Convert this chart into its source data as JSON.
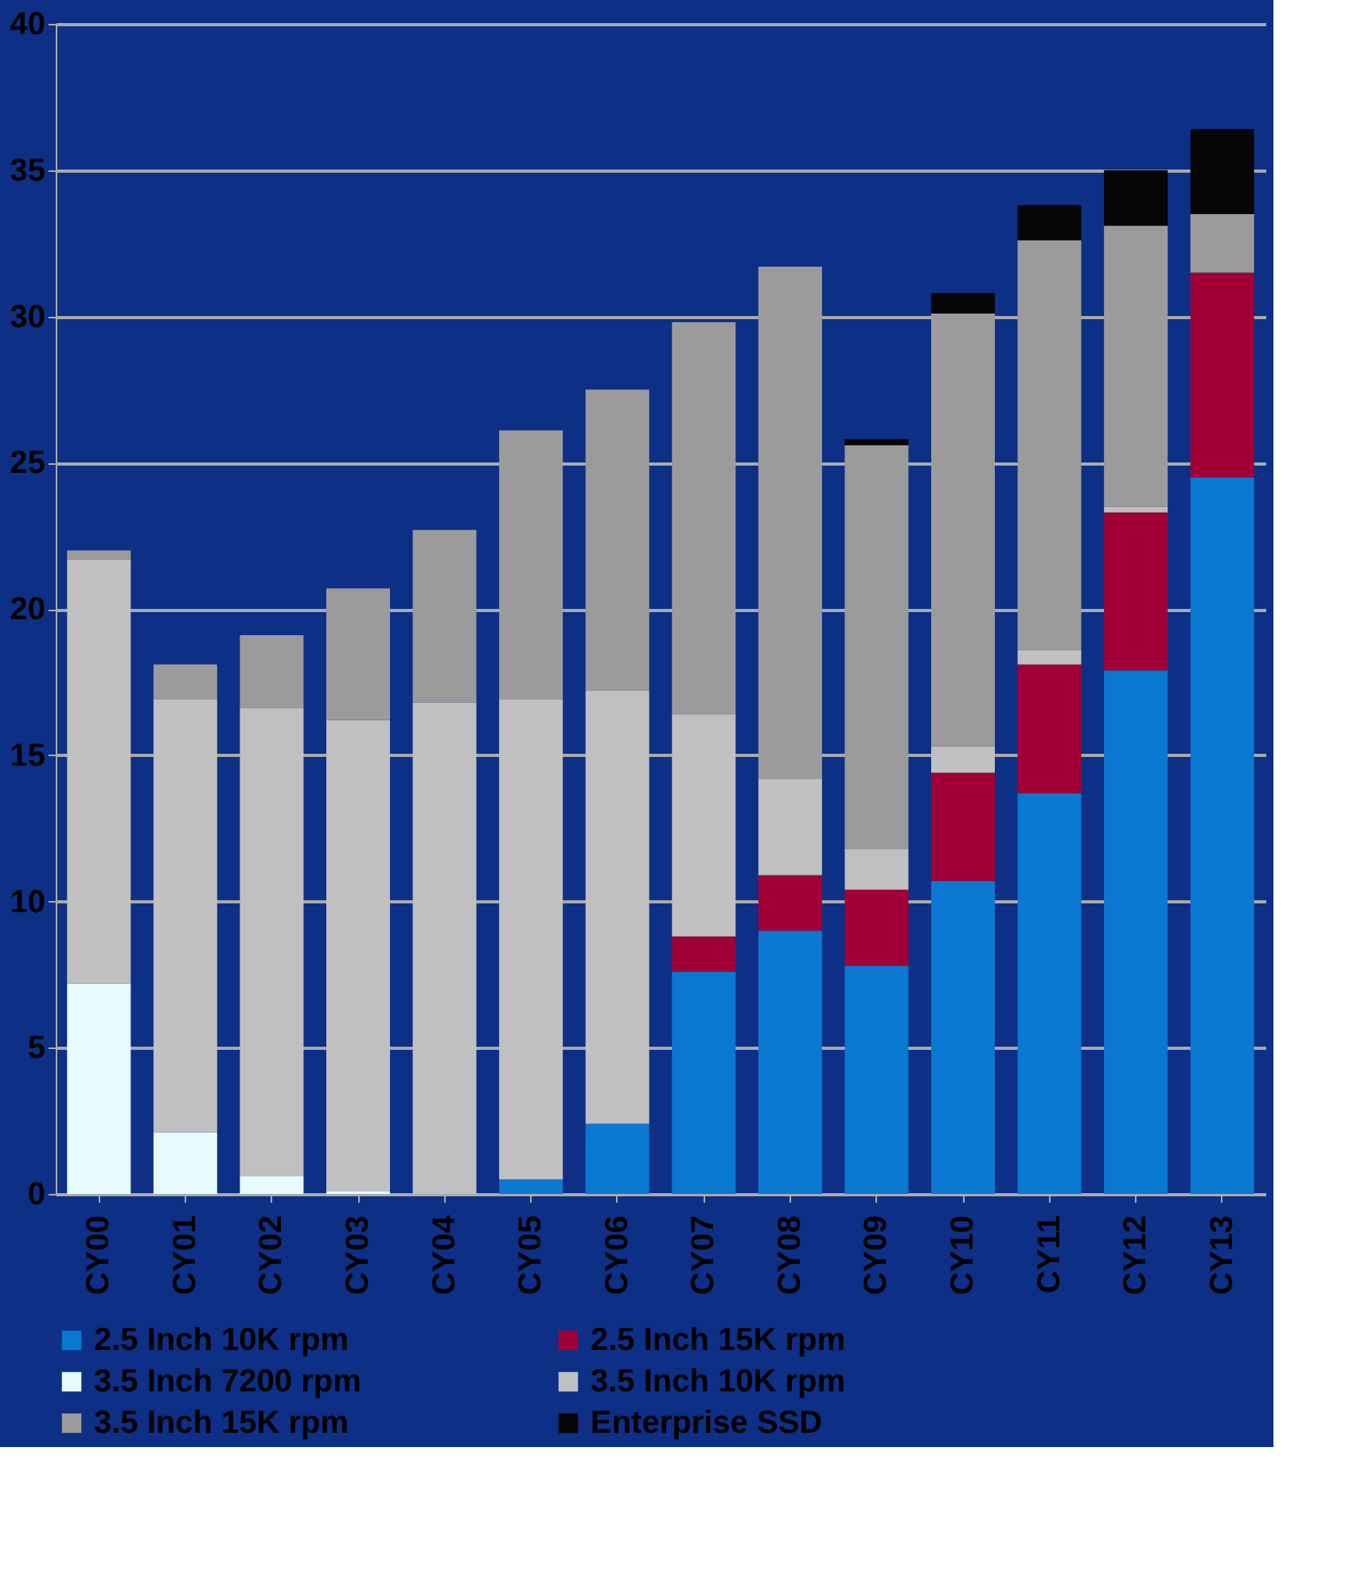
{
  "chart_data": {
    "type": "bar",
    "stacked": true,
    "categories": [
      "CY00",
      "CY01",
      "CY02",
      "CY03",
      "CY04",
      "CY05",
      "CY06",
      "CY07",
      "CY08",
      "CY09",
      "CY10",
      "CY11",
      "CY12",
      "CY13"
    ],
    "series": [
      {
        "name": "2.5 Inch  10K rpm",
        "color": "#0a78d0",
        "values": [
          0,
          0,
          0,
          0,
          0,
          0.5,
          2.4,
          7.6,
          9.0,
          7.8,
          10.7,
          13.7,
          17.9,
          24.5
        ]
      },
      {
        "name": "2.5 Inch 15K rpm",
        "color": "#a00035",
        "values": [
          0,
          0,
          0,
          0,
          0,
          0,
          0,
          1.2,
          1.9,
          2.6,
          3.7,
          4.4,
          5.4,
          7.0
        ]
      },
      {
        "name": "3.5 Inch 7200 rpm",
        "color": "#e6fbfc",
        "values": [
          7.2,
          2.1,
          0.6,
          0.1,
          0,
          0,
          0,
          0,
          0,
          0,
          0,
          0,
          0,
          0
        ]
      },
      {
        "name": "3.5 Inch 10K rpm",
        "color": "#c0c0c0",
        "values": [
          14.5,
          14.8,
          16.0,
          16.1,
          16.8,
          16.4,
          14.8,
          7.6,
          3.3,
          1.4,
          0.9,
          0.5,
          0.2,
          0
        ]
      },
      {
        "name": "3.5 Inch 15K rpm",
        "color": "#9b9b9b",
        "values": [
          0.3,
          1.2,
          2.5,
          4.5,
          5.9,
          9.2,
          10.3,
          13.4,
          17.5,
          13.8,
          14.8,
          14.0,
          9.6,
          2.0
        ]
      },
      {
        "name": "Enterprise SSD",
        "color": "#050505",
        "values": [
          0,
          0,
          0,
          0,
          0,
          0,
          0,
          0,
          0,
          0.2,
          0.7,
          1.2,
          1.9,
          2.9
        ]
      }
    ],
    "ylim": [
      0,
      40
    ],
    "yticks": [
      0,
      5,
      10,
      15,
      20,
      25,
      30,
      35,
      40
    ],
    "grid": "y",
    "legend": "bottom"
  }
}
